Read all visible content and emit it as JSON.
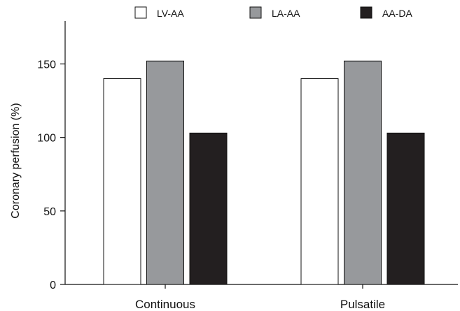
{
  "chart_data": {
    "type": "bar",
    "categories": [
      "Continuous",
      "Pulsatile"
    ],
    "series": [
      {
        "name": "LV-AA",
        "values": [
          140,
          140
        ],
        "color": "#ffffff"
      },
      {
        "name": "LA-AA",
        "values": [
          152,
          152
        ],
        "color": "#97999c"
      },
      {
        "name": "AA-DA",
        "values": [
          103,
          103
        ],
        "color": "#231f20"
      }
    ],
    "title": "",
    "xlabel": "",
    "ylabel": "Coronary perfusion (%)",
    "ylim": [
      0,
      150
    ],
    "yticks": [
      "0",
      "50",
      "100",
      "150"
    ],
    "grid": false,
    "legend_position": "top"
  }
}
